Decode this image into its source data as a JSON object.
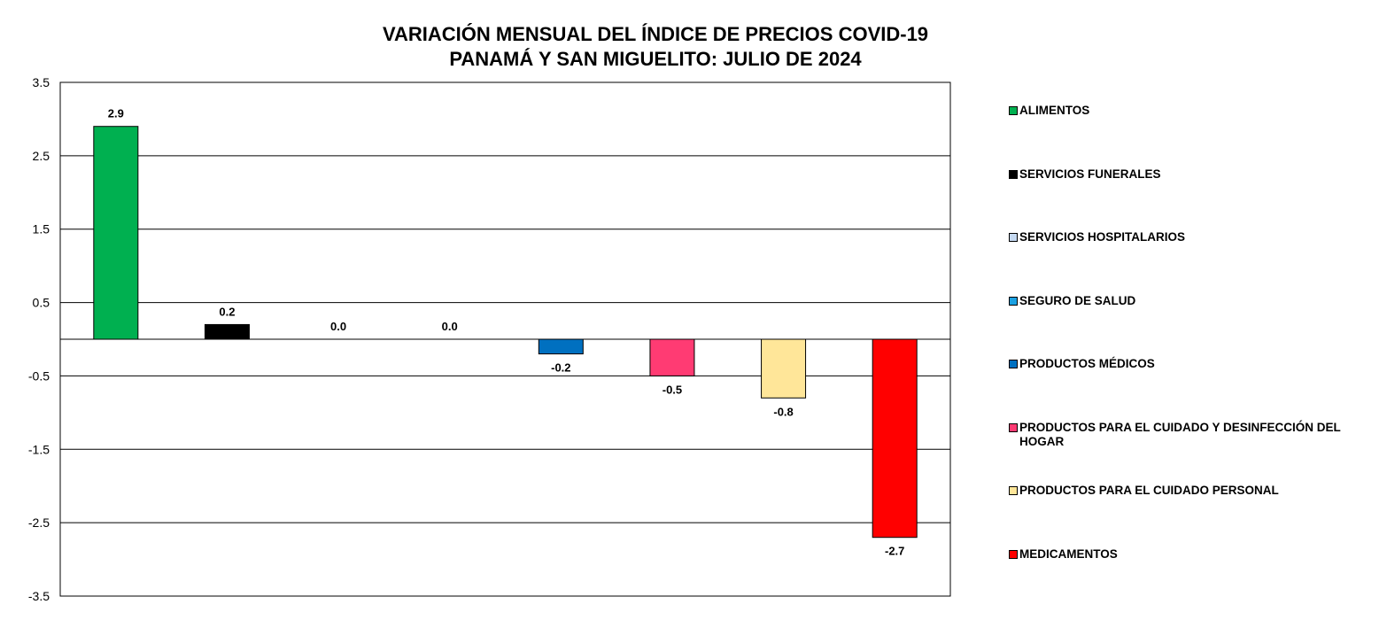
{
  "chart_data": {
    "type": "bar",
    "title": [
      "VARIACIÓN MENSUAL DEL ÍNDICE DE PRECIOS COVID-19",
      "PANAMÁ Y SAN MIGUELITO: JULIO DE 2024"
    ],
    "xlabel": "",
    "ylabel": "",
    "ylim": [
      -3.5,
      3.5
    ],
    "yticks": [
      3.5,
      2.5,
      1.5,
      0.5,
      -0.5,
      -1.5,
      -2.5,
      -3.5
    ],
    "ytick_labels": [
      "3.5",
      "2.5",
      "1.5",
      "0.5",
      "-0.5",
      "-1.5",
      "-2.5",
      "-3.5"
    ],
    "grid": true,
    "legend_position": "right",
    "categories": [
      "ALIMENTOS",
      "SERVICIOS FUNERALES",
      "SERVICIOS HOSPITALARIOS",
      "SEGURO DE SALUD",
      "PRODUCTOS MÉDICOS",
      "PRODUCTOS PARA EL CUIDADO Y DESINFECCIÓN DEL HOGAR",
      "PRODUCTOS PARA EL CUIDADO PERSONAL",
      "MEDICAMENTOS"
    ],
    "values": [
      2.9,
      0.2,
      0.0,
      0.0,
      -0.2,
      -0.5,
      -0.8,
      -2.7
    ],
    "data_labels": [
      "2.9",
      "0.2",
      "0.0",
      "0.0",
      "-0.2",
      "-0.5",
      "-0.8",
      "-2.7"
    ],
    "colors": [
      "#00B050",
      "#000000",
      "#C5D9F1",
      "#1BA1E2",
      "#0070C0",
      "#FF3B73",
      "#FFE699",
      "#FF0000"
    ]
  }
}
